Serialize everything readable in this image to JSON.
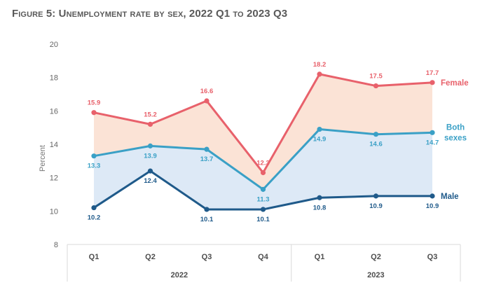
{
  "title": "Figure 5: Unemployment rate by sex, 2022 Q1 to 2023 Q3",
  "colors": {
    "female": "#e8616b",
    "both": "#3aa0c6",
    "male": "#1f5a8a",
    "fill_upper": "#fbe3d6",
    "fill_lower": "#dde9f6",
    "grid_line": "#d9d9d9"
  },
  "chart_data": {
    "type": "line",
    "title": "Figure 5: Unemployment rate by sex, 2022 Q1 to 2023 Q3",
    "ylabel": "Percent",
    "xlabel": "",
    "ylim": [
      8,
      20
    ],
    "yticks": [
      8,
      10,
      12,
      14,
      16,
      18,
      20
    ],
    "categories": [
      "Q1",
      "Q2",
      "Q3",
      "Q4",
      "Q1",
      "Q2",
      "Q3"
    ],
    "year_groups": [
      {
        "label": "2022",
        "count": 4
      },
      {
        "label": "2023",
        "count": 3
      }
    ],
    "series": [
      {
        "key": "female",
        "name": "Female",
        "values": [
          15.9,
          15.2,
          16.6,
          12.3,
          18.2,
          17.5,
          17.7
        ]
      },
      {
        "key": "both",
        "name": "Both sexes",
        "values": [
          13.3,
          13.9,
          13.7,
          11.3,
          14.9,
          14.6,
          14.7
        ]
      },
      {
        "key": "male",
        "name": "Male",
        "values": [
          10.2,
          12.4,
          10.1,
          10.1,
          10.8,
          10.9,
          10.9
        ]
      }
    ],
    "grid": false,
    "legend": "inline labels at right end of each line"
  }
}
